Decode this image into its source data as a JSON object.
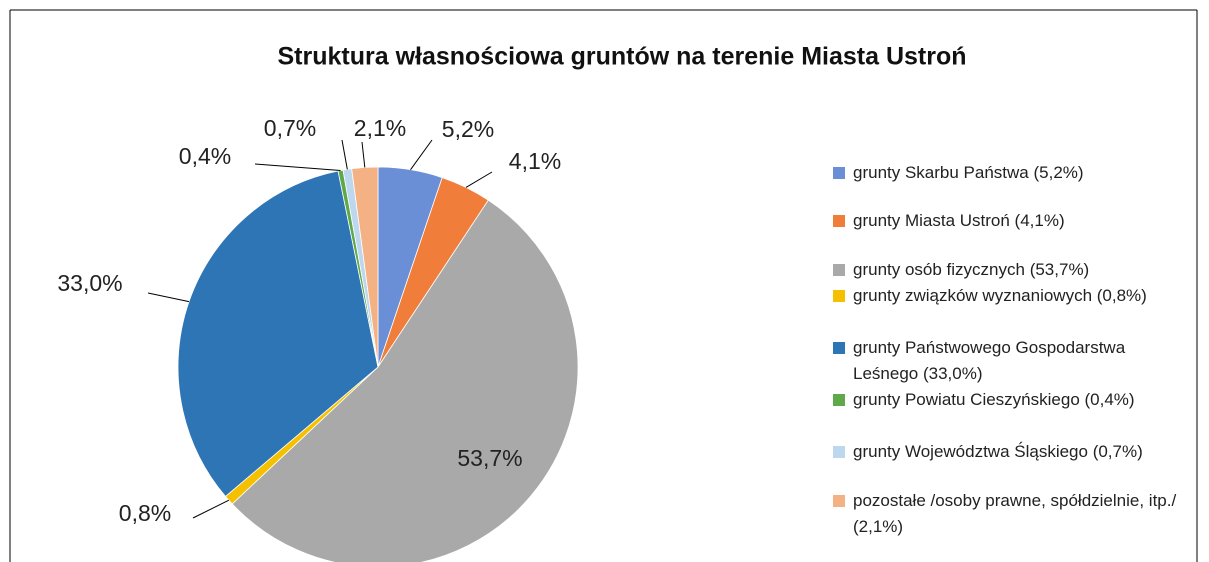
{
  "chart_data": {
    "type": "pie",
    "title": "Struktura własnościowa gruntów na terenie Miasta Ustroń",
    "categories": [
      "grunty Skarbu Państwa (5,2%)",
      "grunty Miasta Ustroń (4,1%)",
      "grunty osób fizycznych (53,7%)",
      "grunty związków wyznaniowych (0,8%)",
      "grunty Państwowego Gospodarstwa Leśnego (33,0%)",
      "grunty Powiatu Cieszyńskiego (0,4%)",
      "grunty Województwa Śląskiego (0,7%)",
      "pozostałe /osoby prawne, spółdzielnie, itp./ (2,1%)"
    ],
    "values": [
      5.2,
      4.1,
      53.7,
      0.8,
      33.0,
      0.4,
      0.7,
      2.1
    ],
    "value_labels": [
      "5,2%",
      "4,1%",
      "53,7%",
      "0,8%",
      "33,0%",
      "0,4%",
      "0,7%",
      "2,1%"
    ],
    "colors": [
      "#6b8fd6",
      "#f07d3a",
      "#a9a9a9",
      "#f5c000",
      "#2e75b6",
      "#5fa94a",
      "#bdd7ee",
      "#f4b183"
    ],
    "legend": "right"
  }
}
